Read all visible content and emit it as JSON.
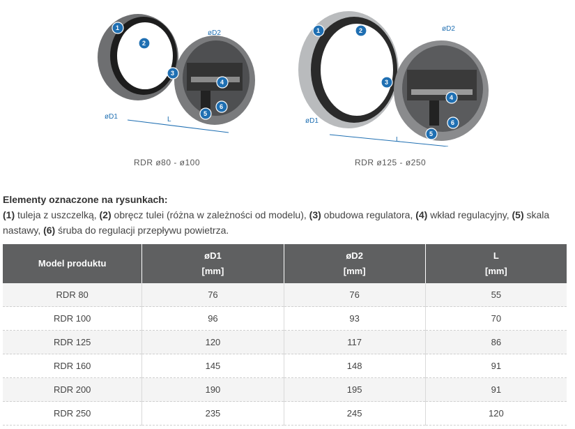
{
  "figures": {
    "small": {
      "caption": "RDR ø80 - ø100",
      "labels": {
        "d1": "øD1",
        "d2": "øD2",
        "l": "L"
      },
      "badges": [
        "1",
        "2",
        "3",
        "4",
        "5",
        "6"
      ]
    },
    "large": {
      "caption": "RDR ø125 - ø250",
      "labels": {
        "d1": "øD1",
        "d2": "øD2",
        "l": "L"
      },
      "badges": [
        "1",
        "2",
        "3",
        "4",
        "5",
        "6"
      ]
    }
  },
  "legend": {
    "title": "Elementy oznaczone na rysunkach:",
    "items": [
      {
        "num": "(1)",
        "text": " tuleja z uszczelką, "
      },
      {
        "num": "(2)",
        "text": " obręcz tulei (różna w zależności od modelu), "
      },
      {
        "num": "(3)",
        "text": " obudowa regulatora, "
      },
      {
        "num": "(4)",
        "text": " wkład regulacyjny, "
      },
      {
        "num": "(5)",
        "text": " skala nastawy, "
      },
      {
        "num": "(6)",
        "text": " śruba do regulacji przepływu powietrza."
      }
    ]
  },
  "table": {
    "headers": [
      {
        "line1": "Model produktu",
        "line2": ""
      },
      {
        "line1": "øD1",
        "line2": "[mm]"
      },
      {
        "line1": "øD2",
        "line2": "[mm]"
      },
      {
        "line1": "L",
        "line2": "[mm]"
      }
    ],
    "rows": [
      [
        "RDR 80",
        "76",
        "76",
        "55"
      ],
      [
        "RDR 100",
        "96",
        "93",
        "70"
      ],
      [
        "RDR 125",
        "120",
        "117",
        "86"
      ],
      [
        "RDR 160",
        "145",
        "148",
        "91"
      ],
      [
        "RDR 200",
        "190",
        "195",
        "91"
      ],
      [
        "RDR 250",
        "235",
        "245",
        "120"
      ]
    ]
  },
  "colors": {
    "badge": "#1f6fb2",
    "header_bg": "#5f6061"
  }
}
